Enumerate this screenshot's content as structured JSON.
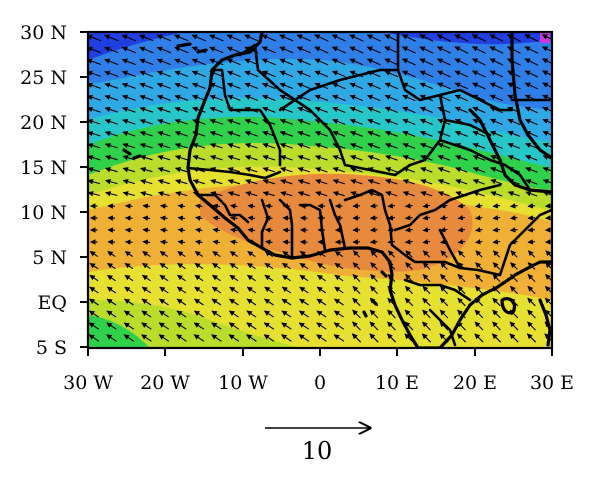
{
  "map": {
    "lon_ticks": [
      "30 W",
      "20 W",
      "10 W",
      "0",
      "10 E",
      "20 E",
      "30 E"
    ],
    "lat_ticks": [
      "30 N",
      "25 N",
      "20 N",
      "15 N",
      "10 N",
      "5 N",
      "EQ",
      "5 S"
    ],
    "lon_range": [
      -30,
      30
    ],
    "lat_range": [
      -5,
      30
    ],
    "scale_arrow_label": "10",
    "field_colors": {
      "deep_blue": "#1f3fe0",
      "mid_blue": "#2f7fe8",
      "light_blue": "#2fa9e6",
      "cyan": "#27c7c9",
      "green": "#2fd04a",
      "yellow_green": "#b9dd2a",
      "yellow": "#e6e030",
      "orange_yellow": "#f0b035",
      "orange": "#e88a3e",
      "magenta": "#c83adf"
    }
  }
}
